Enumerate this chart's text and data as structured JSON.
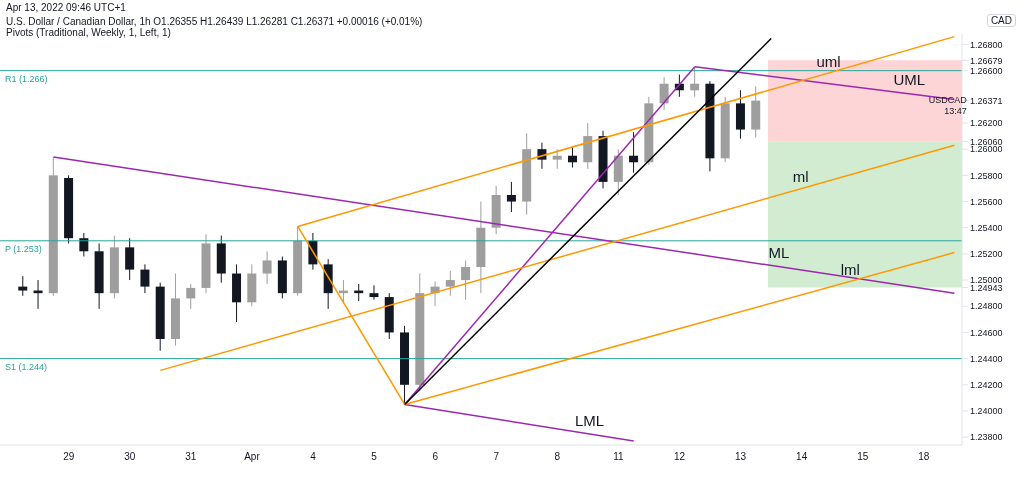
{
  "chart_data": {
    "type": "candlestick",
    "title": "U.S. Dollar / Canadian Dollar, 1h  O1.26355 H1.26439 L1.26281 C1.26371 +0.00016 (+0.01%)",
    "subtitle": "Pivots (Traditional, Weekly, 1, Left, 1)",
    "ylabel": "CAD",
    "categories": [
      null,
      null,
      null,
      null,
      "29",
      null,
      null,
      null,
      "30",
      null,
      null,
      null,
      "31",
      null,
      null,
      null,
      "Apr",
      null,
      null,
      null,
      "4",
      null,
      null,
      null,
      "5",
      null,
      null,
      null,
      "6",
      null,
      null,
      null,
      "7",
      null,
      null,
      null,
      "8",
      null,
      null,
      null,
      "11",
      null,
      null,
      null,
      "12",
      null,
      null,
      null,
      "13",
      null,
      null,
      null,
      "14",
      null,
      null,
      null,
      "15",
      null,
      null,
      null,
      "18",
      null,
      null
    ],
    "ohlc": [
      null,
      [
        1.2495,
        1.2503,
        1.2488,
        1.2492
      ],
      [
        1.2492,
        1.25,
        1.2478,
        1.249
      ],
      [
        1.249,
        1.2594,
        1.2488,
        1.258
      ],
      [
        1.2578,
        1.258,
        1.2528,
        1.2532
      ],
      [
        1.2532,
        1.2536,
        1.2518,
        1.2522
      ],
      [
        1.2522,
        1.2528,
        1.2478,
        1.249
      ],
      [
        1.249,
        1.2534,
        1.2486,
        1.2525
      ],
      [
        1.2525,
        1.2532,
        1.25,
        1.2508
      ],
      [
        1.2508,
        1.2512,
        1.249,
        1.2495
      ],
      [
        1.2495,
        1.2498,
        1.2446,
        1.2455
      ],
      [
        1.2455,
        1.2505,
        1.245,
        1.2486
      ],
      [
        1.2486,
        1.2497,
        1.2478,
        1.2494
      ],
      [
        1.2494,
        1.2535,
        1.249,
        1.2528
      ],
      [
        1.2528,
        1.2534,
        1.2498,
        1.2505
      ],
      [
        1.2505,
        1.2512,
        1.2468,
        1.2483
      ],
      [
        1.2483,
        1.2512,
        1.248,
        1.2505
      ],
      [
        1.2505,
        1.2522,
        1.2497,
        1.2515
      ],
      [
        1.2515,
        1.2518,
        1.2486,
        1.249
      ],
      [
        1.249,
        1.2541,
        1.2488,
        1.253
      ],
      [
        1.253,
        1.2536,
        1.2508,
        1.2512
      ],
      [
        1.2512,
        1.2516,
        1.2478,
        1.249
      ],
      [
        1.249,
        1.25,
        1.2482,
        1.2492
      ],
      [
        1.2492,
        1.2497,
        1.2484,
        1.249
      ],
      [
        1.249,
        1.2496,
        1.2485,
        1.2487
      ],
      [
        1.2487,
        1.249,
        1.2455,
        1.246
      ],
      [
        1.246,
        1.2465,
        1.2405,
        1.242
      ],
      [
        1.242,
        1.2505,
        1.2415,
        1.249
      ],
      [
        1.249,
        1.2499,
        1.248,
        1.2495
      ],
      [
        1.2495,
        1.2507,
        1.2488,
        1.25
      ],
      [
        1.25,
        1.2515,
        1.2485,
        1.251
      ],
      [
        1.251,
        1.256,
        1.249,
        1.254
      ],
      [
        1.254,
        1.2572,
        1.2535,
        1.2565
      ],
      [
        1.2565,
        1.2575,
        1.2552,
        1.256
      ],
      [
        1.256,
        1.2612,
        1.255,
        1.26
      ],
      [
        1.26,
        1.2605,
        1.2585,
        1.2592
      ],
      [
        1.2592,
        1.26,
        1.2585,
        1.2595
      ],
      [
        1.2595,
        1.2602,
        1.2586,
        1.259
      ],
      [
        1.259,
        1.262,
        1.2585,
        1.261
      ],
      [
        1.261,
        1.2614,
        1.257,
        1.2575
      ],
      [
        1.2575,
        1.26,
        1.2565,
        1.2595
      ],
      [
        1.2595,
        1.2613,
        1.2582,
        1.259
      ],
      [
        1.259,
        1.264,
        1.2588,
        1.2635
      ],
      [
        1.2635,
        1.2655,
        1.263,
        1.265
      ],
      [
        1.265,
        1.2657,
        1.264,
        1.2645
      ],
      [
        1.2645,
        1.2663,
        1.264,
        1.265
      ],
      [
        1.265,
        1.2652,
        1.2583,
        1.2593
      ],
      [
        1.2593,
        1.264,
        1.259,
        1.2635
      ],
      [
        1.2635,
        1.2645,
        1.2608,
        1.2615
      ],
      [
        1.2615,
        1.2648,
        1.2609,
        1.26371
      ],
      null,
      null,
      null,
      null,
      null,
      null,
      null,
      null,
      null,
      null,
      null,
      null,
      null
    ],
    "colors": [
      null,
      "#131722",
      "#131722",
      "#9e9e9e",
      "#131722",
      "#131722",
      "#131722",
      "#9e9e9e",
      "#131722",
      "#131722",
      "#131722",
      "#9e9e9e",
      "#9e9e9e",
      "#9e9e9e",
      "#131722",
      "#131722",
      "#9e9e9e",
      "#9e9e9e",
      "#131722",
      "#9e9e9e",
      "#131722",
      "#131722",
      "#9e9e9e",
      "#131722",
      "#131722",
      "#131722",
      "#131722",
      "#9e9e9e",
      "#9e9e9e",
      "#9e9e9e",
      "#9e9e9e",
      "#9e9e9e",
      "#9e9e9e",
      "#131722",
      "#9e9e9e",
      "#131722",
      "#9e9e9e",
      "#131722",
      "#9e9e9e",
      "#131722",
      "#9e9e9e",
      "#131722",
      "#9e9e9e",
      "#9e9e9e",
      "#131722",
      "#9e9e9e",
      "#131722",
      "#9e9e9e",
      "#131722",
      "#9e9e9e",
      null,
      null,
      null,
      null,
      null,
      null,
      null,
      null,
      null,
      null,
      null,
      null,
      null
    ],
    "series": [
      {
        "type": "line",
        "name": "ML",
        "color": "#9c27b0",
        "values": [
          null,
          null,
          null,
          1.2594,
          null,
          null,
          null,
          null,
          null,
          null,
          null,
          null,
          null,
          null,
          null,
          null,
          null,
          null,
          null,
          null,
          null,
          null,
          null,
          null,
          null,
          null,
          null,
          null,
          null,
          null,
          null,
          null,
          null,
          null,
          null,
          null,
          null,
          null,
          null,
          null,
          null,
          null,
          null,
          null,
          null,
          null,
          null,
          null,
          null,
          null,
          null,
          null,
          null,
          null,
          null,
          null,
          null,
          null,
          null,
          null,
          null,
          null,
          1.249
        ]
      },
      {
        "type": "line",
        "name": "UML",
        "color": "#9c27b0",
        "values": [
          null,
          null,
          null,
          null,
          null,
          null,
          null,
          null,
          null,
          null,
          null,
          null,
          null,
          null,
          null,
          null,
          null,
          null,
          null,
          null,
          null,
          null,
          null,
          null,
          null,
          null,
          null,
          null,
          null,
          null,
          null,
          null,
          null,
          null,
          null,
          null,
          null,
          null,
          null,
          null,
          null,
          null,
          null,
          null,
          null,
          1.2663,
          null,
          null,
          null,
          null,
          null,
          null,
          null,
          null,
          null,
          null,
          null,
          null,
          null,
          null,
          null,
          null,
          1.2638
        ]
      },
      {
        "type": "line",
        "name": "LML",
        "color": "#9c27b0",
        "values": [
          null,
          null,
          null,
          null,
          null,
          null,
          null,
          null,
          null,
          null,
          null,
          null,
          null,
          null,
          null,
          null,
          null,
          null,
          null,
          null,
          null,
          null,
          null,
          null,
          null,
          null,
          1.2405,
          null,
          null,
          null,
          null,
          null,
          null,
          null,
          null,
          null,
          null,
          null,
          null,
          null,
          null,
          1.2377,
          null,
          null,
          null,
          null,
          null,
          null,
          null,
          null,
          null,
          null,
          null,
          null,
          null,
          null,
          null,
          null,
          null,
          null,
          null,
          null,
          null
        ]
      },
      {
        "type": "line",
        "color": "#9c27b0",
        "values": [
          null,
          null,
          null,
          null,
          null,
          null,
          null,
          null,
          null,
          null,
          null,
          null,
          null,
          null,
          null,
          null,
          null,
          null,
          null,
          null,
          null,
          null,
          null,
          null,
          null,
          null,
          1.2405,
          null,
          null,
          null,
          null,
          null,
          null,
          null,
          null,
          null,
          null,
          null,
          null,
          null,
          null,
          null,
          null,
          null,
          null,
          1.2663,
          null,
          null,
          null,
          null,
          null,
          null,
          null,
          null,
          null,
          null,
          null,
          null,
          null,
          null,
          null,
          null,
          null
        ]
      },
      {
        "type": "line",
        "name": "uml",
        "color": "#ff9800",
        "values": [
          null,
          null,
          null,
          null,
          null,
          null,
          null,
          null,
          null,
          null,
          null,
          null,
          null,
          null,
          null,
          null,
          null,
          null,
          null,
          1.2541,
          null,
          null,
          null,
          null,
          null,
          null,
          null,
          null,
          null,
          null,
          null,
          null,
          null,
          null,
          null,
          null,
          null,
          null,
          null,
          null,
          null,
          null,
          null,
          null,
          null,
          null,
          null,
          null,
          null,
          null,
          null,
          null,
          null,
          null,
          null,
          null,
          null,
          null,
          null,
          null,
          null,
          null,
          1.2686
        ]
      },
      {
        "type": "line",
        "name": "ml",
        "color": "#ff9800",
        "values": [
          null,
          null,
          null,
          null,
          null,
          null,
          null,
          null,
          null,
          null,
          1.2431,
          null,
          null,
          null,
          null,
          null,
          null,
          null,
          null,
          null,
          null,
          null,
          null,
          null,
          null,
          null,
          null,
          null,
          null,
          null,
          null,
          null,
          null,
          null,
          null,
          null,
          null,
          null,
          null,
          null,
          null,
          null,
          null,
          null,
          null,
          null,
          null,
          null,
          null,
          null,
          null,
          null,
          null,
          null,
          null,
          null,
          null,
          null,
          null,
          null,
          null,
          null,
          1.2603
        ]
      },
      {
        "type": "line",
        "name": "lml",
        "color": "#ff9800",
        "values": [
          null,
          null,
          null,
          null,
          null,
          null,
          null,
          null,
          null,
          null,
          null,
          null,
          null,
          null,
          null,
          null,
          null,
          null,
          null,
          null,
          null,
          null,
          null,
          null,
          null,
          null,
          1.2405,
          null,
          null,
          null,
          null,
          null,
          null,
          null,
          null,
          null,
          null,
          null,
          null,
          null,
          null,
          null,
          null,
          null,
          null,
          null,
          null,
          null,
          null,
          null,
          null,
          null,
          null,
          null,
          null,
          null,
          null,
          null,
          null,
          null,
          null,
          null,
          1.2521
        ]
      },
      {
        "type": "line",
        "color": "#ff9800",
        "values": [
          null,
          null,
          null,
          null,
          null,
          null,
          null,
          null,
          null,
          null,
          null,
          null,
          null,
          null,
          null,
          null,
          null,
          null,
          null,
          1.2541,
          null,
          null,
          null,
          null,
          null,
          null,
          1.2405,
          null,
          null,
          null,
          null,
          null,
          null,
          null,
          null,
          null,
          null,
          null,
          null,
          null,
          null,
          null,
          null,
          null,
          null,
          null,
          null,
          null,
          null,
          null,
          null,
          null,
          null,
          null,
          null,
          null,
          null,
          null,
          null,
          null,
          null,
          null,
          null
        ]
      },
      {
        "type": "line",
        "color": "#000000",
        "values": [
          null,
          null,
          null,
          null,
          null,
          null,
          null,
          null,
          null,
          null,
          null,
          null,
          null,
          null,
          null,
          null,
          null,
          null,
          null,
          null,
          null,
          null,
          null,
          null,
          null,
          null,
          1.2405,
          null,
          null,
          null,
          null,
          null,
          null,
          null,
          null,
          null,
          null,
          null,
          null,
          null,
          null,
          null,
          null,
          null,
          null,
          null,
          null,
          null,
          null,
          null,
          1.26845,
          null,
          null,
          null,
          null,
          null,
          null,
          null,
          null,
          null,
          null,
          null,
          null
        ]
      }
    ],
    "ylim": [
      1.2374,
      1.2688
    ],
    "yticks": [
      {
        "value": 1.238,
        "label": "1.23800"
      },
      {
        "value": 1.24,
        "label": "1.24000"
      },
      {
        "value": 1.242,
        "label": "1.24200"
      },
      {
        "value": 1.244,
        "label": "1.24400"
      },
      {
        "value": 1.246,
        "label": "1.24600"
      },
      {
        "value": 1.248,
        "label": "1.24800"
      },
      {
        "value": 1.24943,
        "label": "1.24943"
      },
      {
        "value": 1.25,
        "label": "1.25000"
      },
      {
        "value": 1.252,
        "label": "1.25200"
      },
      {
        "value": 1.254,
        "label": "1.25400"
      },
      {
        "value": 1.256,
        "label": "1.25600"
      },
      {
        "value": 1.258,
        "label": "1.25800"
      },
      {
        "value": 1.26,
        "label": "1.26000"
      },
      {
        "value": 1.2606,
        "label": "1.26060"
      },
      {
        "value": 1.262,
        "label": "1.26200"
      },
      {
        "value": 1.26371,
        "label": "1.26371"
      },
      {
        "value": 1.266,
        "label": "1.26600"
      },
      {
        "value": 1.26679,
        "label": "1.26679"
      },
      {
        "value": 1.268,
        "label": "1.26800"
      }
    ],
    "bands": [
      {
        "axis": "y",
        "from": 1.2606,
        "to": 1.26679,
        "color": "#fdd5d7"
      },
      {
        "axis": "y",
        "from": 1.2606,
        "to": 1.24943,
        "color": "#d1ecd0"
      }
    ],
    "ref_lines": [
      {
        "axis": "y",
        "value": 1.266,
        "label": "R1 (1.266)",
        "color": "#26a69a"
      },
      {
        "axis": "y",
        "value": 1.253,
        "label": "P (1.253)",
        "color": "#26a69a"
      },
      {
        "axis": "y",
        "value": 1.244,
        "label": "S1 (1.244)",
        "color": "#26a69a"
      }
    ],
    "annotations": [
      "Apr 13, 2022 09:46 UTC+1",
      "USDCAD",
      "13:47"
    ]
  }
}
